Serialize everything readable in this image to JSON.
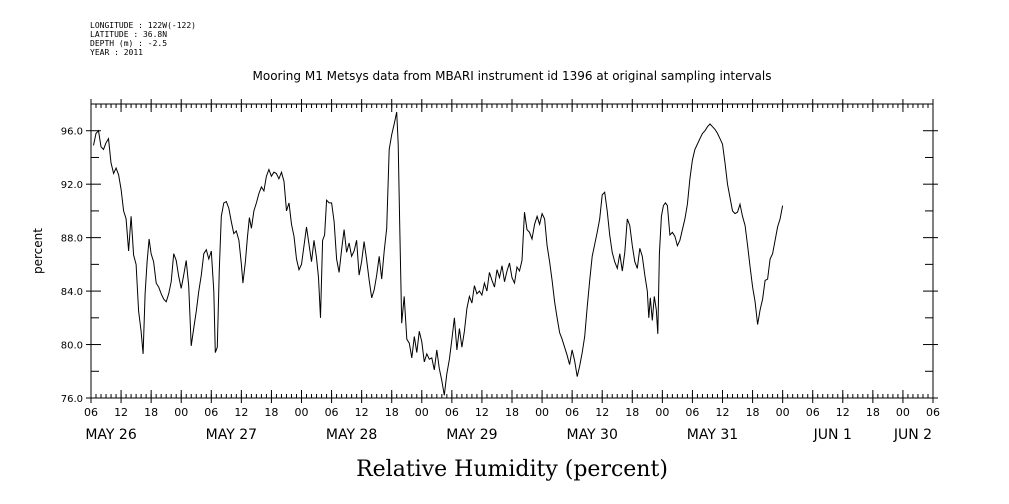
{
  "meta": {
    "longitude": "LONGITUDE : 122W(-122)",
    "latitude": "LATITUDE : 36.8N",
    "depth": "DEPTH (m) : -2.5",
    "year": "YEAR : 2011"
  },
  "chart_data": {
    "type": "line",
    "title": "Mooring M1 Metsys data from MBARI instrument id 1396 at original sampling intervals",
    "xlabel": "Relative Humidity (percent)",
    "ylabel": "percent",
    "ylim": [
      76.0,
      98.0
    ],
    "xlim_hours": [
      0,
      168
    ],
    "yticks": [
      76.0,
      80.0,
      84.0,
      88.0,
      92.0,
      96.0
    ],
    "ytick_labels": [
      "76.0",
      "80.0",
      "84.0",
      "88.0",
      "92.0",
      "96.0"
    ],
    "xtick_labels": [
      "06",
      "12",
      "18",
      "00",
      "06",
      "12",
      "18",
      "00",
      "06",
      "12",
      "18",
      "00",
      "06",
      "12",
      "18",
      "00",
      "06",
      "12",
      "18",
      "00",
      "06",
      "12",
      "18",
      "00",
      "06",
      "12",
      "18",
      "00",
      "06"
    ],
    "date_labels": [
      {
        "text": "MAY 26",
        "hour": 4
      },
      {
        "text": "MAY 27",
        "hour": 28
      },
      {
        "text": "MAY 28",
        "hour": 52
      },
      {
        "text": "MAY 29",
        "hour": 76
      },
      {
        "text": "MAY 30",
        "hour": 100
      },
      {
        "text": "MAY 31",
        "hour": 124
      },
      {
        "text": "JUN  1",
        "hour": 148
      },
      {
        "text": "JUN  2",
        "hour": 164
      }
    ],
    "grid": false,
    "series": [
      {
        "points": [
          [
            0.5,
            94.9
          ],
          [
            1.0,
            95.8
          ],
          [
            1.5,
            96.0
          ],
          [
            2.0,
            94.8
          ],
          [
            2.5,
            94.6
          ],
          [
            3.0,
            95.1
          ],
          [
            3.5,
            95.4
          ],
          [
            4.0,
            93.6
          ],
          [
            4.5,
            92.8
          ],
          [
            5.0,
            93.2
          ],
          [
            5.5,
            92.7
          ],
          [
            6.0,
            91.6
          ],
          [
            6.5,
            90.0
          ],
          [
            7.0,
            89.4
          ],
          [
            7.5,
            87.0
          ],
          [
            8.0,
            89.6
          ],
          [
            8.5,
            86.7
          ],
          [
            9.0,
            86.0
          ],
          [
            9.5,
            82.5
          ],
          [
            10.0,
            81.0
          ],
          [
            10.4,
            79.3
          ],
          [
            10.8,
            83.8
          ],
          [
            11.2,
            86.2
          ],
          [
            11.6,
            87.9
          ],
          [
            12.0,
            86.8
          ],
          [
            12.5,
            86.2
          ],
          [
            13.0,
            84.6
          ],
          [
            13.5,
            84.3
          ],
          [
            14.0,
            83.8
          ],
          [
            14.5,
            83.4
          ],
          [
            15.0,
            83.2
          ],
          [
            15.5,
            83.8
          ],
          [
            16.0,
            84.7
          ],
          [
            16.5,
            86.8
          ],
          [
            17.0,
            86.3
          ],
          [
            17.5,
            85.1
          ],
          [
            18.0,
            84.2
          ],
          [
            18.5,
            85.2
          ],
          [
            19.0,
            86.3
          ],
          [
            19.5,
            84.4
          ],
          [
            20.0,
            79.9
          ],
          [
            20.5,
            81.2
          ],
          [
            21.0,
            82.5
          ],
          [
            21.5,
            84.0
          ],
          [
            22.0,
            85.2
          ],
          [
            22.5,
            86.8
          ],
          [
            23.0,
            87.1
          ],
          [
            23.5,
            86.4
          ],
          [
            24.0,
            87.0
          ],
          [
            24.5,
            84.0
          ],
          [
            24.8,
            79.4
          ],
          [
            25.2,
            79.8
          ],
          [
            25.6,
            85.6
          ],
          [
            26.0,
            89.6
          ],
          [
            26.5,
            90.6
          ],
          [
            27.0,
            90.7
          ],
          [
            27.5,
            90.2
          ],
          [
            28.0,
            89.2
          ],
          [
            28.5,
            88.3
          ],
          [
            29.0,
            88.5
          ],
          [
            29.5,
            87.8
          ],
          [
            30.0,
            86.0
          ],
          [
            30.3,
            84.6
          ],
          [
            30.8,
            86.2
          ],
          [
            31.2,
            88.0
          ],
          [
            31.6,
            89.5
          ],
          [
            32.0,
            88.7
          ],
          [
            32.5,
            90.0
          ],
          [
            33.0,
            90.6
          ],
          [
            33.5,
            91.3
          ],
          [
            34.0,
            91.8
          ],
          [
            34.5,
            91.5
          ],
          [
            35.0,
            92.6
          ],
          [
            35.5,
            93.1
          ],
          [
            36.0,
            92.6
          ],
          [
            36.5,
            92.9
          ],
          [
            37.0,
            92.8
          ],
          [
            37.5,
            92.4
          ],
          [
            38.0,
            92.9
          ],
          [
            38.5,
            92.2
          ],
          [
            39.0,
            90.0
          ],
          [
            39.5,
            90.6
          ],
          [
            40.0,
            89.0
          ],
          [
            40.5,
            88.1
          ],
          [
            41.0,
            86.4
          ],
          [
            41.5,
            85.6
          ],
          [
            42.0,
            86.0
          ],
          [
            42.5,
            87.4
          ],
          [
            43.0,
            88.8
          ],
          [
            43.5,
            87.5
          ],
          [
            44.0,
            86.2
          ],
          [
            44.5,
            87.8
          ],
          [
            45.0,
            86.5
          ],
          [
            45.4,
            85.0
          ],
          [
            45.8,
            82.0
          ],
          [
            46.2,
            87.8
          ],
          [
            46.6,
            88.2
          ],
          [
            47.0,
            90.8
          ],
          [
            47.5,
            90.6
          ],
          [
            48.0,
            90.6
          ],
          [
            48.5,
            89.2
          ],
          [
            49.0,
            86.4
          ],
          [
            49.5,
            85.4
          ],
          [
            50.0,
            87.1
          ],
          [
            50.5,
            88.6
          ],
          [
            51.0,
            86.9
          ],
          [
            51.5,
            87.6
          ],
          [
            52.0,
            86.6
          ],
          [
            52.5,
            87.0
          ],
          [
            53.0,
            87.8
          ],
          [
            53.5,
            85.2
          ],
          [
            54.0,
            86.2
          ],
          [
            54.5,
            87.7
          ],
          [
            55.0,
            86.3
          ],
          [
            55.5,
            84.8
          ],
          [
            56.0,
            83.5
          ],
          [
            56.5,
            84.1
          ],
          [
            57.0,
            85.2
          ],
          [
            57.5,
            86.6
          ],
          [
            58.0,
            84.9
          ],
          [
            58.5,
            87.0
          ],
          [
            59.0,
            88.7
          ],
          [
            59.5,
            94.6
          ],
          [
            60.0,
            95.7
          ],
          [
            60.5,
            96.5
          ],
          [
            61.0,
            97.4
          ],
          [
            61.3,
            95.0
          ],
          [
            61.6,
            89.0
          ],
          [
            62.0,
            81.6
          ],
          [
            62.5,
            83.6
          ],
          [
            63.0,
            80.4
          ],
          [
            63.5,
            80.1
          ],
          [
            64.0,
            79.0
          ],
          [
            64.5,
            80.6
          ],
          [
            65.0,
            79.4
          ],
          [
            65.5,
            81.0
          ],
          [
            66.0,
            80.2
          ],
          [
            66.5,
            78.7
          ],
          [
            67.0,
            79.3
          ],
          [
            67.5,
            78.9
          ],
          [
            68.0,
            79.0
          ],
          [
            68.5,
            78.1
          ],
          [
            69.0,
            79.6
          ],
          [
            69.5,
            78.2
          ],
          [
            70.0,
            77.3
          ],
          [
            70.5,
            76.2
          ],
          [
            71.0,
            77.8
          ],
          [
            71.5,
            78.9
          ],
          [
            72.0,
            80.4
          ],
          [
            72.5,
            82.0
          ],
          [
            73.0,
            79.6
          ],
          [
            73.5,
            81.2
          ],
          [
            74.0,
            79.8
          ],
          [
            74.5,
            81.0
          ],
          [
            75.0,
            82.7
          ],
          [
            75.5,
            83.6
          ],
          [
            76.0,
            83.1
          ],
          [
            76.5,
            84.4
          ],
          [
            77.0,
            83.8
          ],
          [
            77.5,
            84.0
          ],
          [
            78.0,
            83.7
          ],
          [
            78.5,
            84.6
          ],
          [
            79.0,
            84.0
          ],
          [
            79.5,
            85.4
          ],
          [
            80.0,
            84.8
          ],
          [
            80.5,
            84.3
          ],
          [
            81.0,
            85.6
          ],
          [
            81.5,
            85.0
          ],
          [
            82.0,
            85.9
          ],
          [
            82.5,
            84.7
          ],
          [
            83.0,
            85.5
          ],
          [
            83.5,
            86.1
          ],
          [
            84.0,
            85.0
          ],
          [
            84.5,
            84.6
          ],
          [
            85.0,
            85.8
          ],
          [
            85.5,
            85.5
          ],
          [
            86.0,
            86.3
          ],
          [
            86.5,
            89.9
          ],
          [
            87.0,
            88.6
          ],
          [
            87.5,
            88.4
          ],
          [
            88.0,
            87.9
          ],
          [
            88.5,
            89.0
          ],
          [
            89.0,
            89.6
          ],
          [
            89.5,
            89.0
          ],
          [
            90.0,
            89.8
          ],
          [
            90.5,
            89.4
          ],
          [
            91.0,
            87.4
          ],
          [
            91.5,
            86.2
          ],
          [
            92.0,
            84.8
          ],
          [
            92.5,
            83.2
          ],
          [
            93.0,
            82.0
          ],
          [
            93.5,
            80.9
          ],
          [
            94.0,
            80.4
          ],
          [
            94.5,
            79.8
          ],
          [
            95.0,
            79.2
          ],
          [
            95.5,
            78.5
          ],
          [
            96.0,
            79.6
          ],
          [
            96.5,
            78.8
          ],
          [
            97.0,
            77.6
          ],
          [
            97.5,
            78.4
          ],
          [
            98.0,
            79.4
          ],
          [
            98.5,
            80.6
          ],
          [
            99.0,
            82.8
          ],
          [
            99.5,
            84.8
          ],
          [
            100.0,
            86.6
          ],
          [
            100.5,
            87.5
          ],
          [
            101.0,
            88.4
          ],
          [
            101.5,
            89.4
          ],
          [
            102.0,
            91.2
          ],
          [
            102.5,
            91.4
          ],
          [
            103.0,
            90.0
          ],
          [
            103.5,
            88.2
          ],
          [
            104.0,
            86.9
          ],
          [
            104.5,
            86.2
          ],
          [
            105.0,
            85.7
          ],
          [
            105.5,
            86.8
          ],
          [
            106.0,
            85.5
          ],
          [
            106.5,
            86.9
          ],
          [
            107.0,
            89.4
          ],
          [
            107.5,
            88.9
          ],
          [
            108.0,
            87.4
          ],
          [
            108.5,
            86.2
          ],
          [
            109.0,
            85.7
          ],
          [
            109.5,
            87.2
          ],
          [
            110.0,
            86.6
          ],
          [
            110.5,
            85.2
          ],
          [
            111.0,
            84.0
          ],
          [
            111.3,
            82.0
          ],
          [
            111.6,
            83.5
          ],
          [
            112.0,
            81.8
          ],
          [
            112.4,
            83.6
          ],
          [
            112.8,
            82.6
          ],
          [
            113.1,
            80.8
          ],
          [
            113.4,
            86.8
          ],
          [
            113.8,
            89.6
          ],
          [
            114.2,
            90.4
          ],
          [
            114.6,
            90.6
          ],
          [
            115.0,
            90.4
          ],
          [
            115.5,
            88.2
          ],
          [
            116.0,
            88.4
          ],
          [
            116.5,
            88.1
          ],
          [
            117.0,
            87.4
          ],
          [
            117.5,
            87.8
          ],
          [
            118.0,
            88.6
          ],
          [
            118.5,
            89.4
          ],
          [
            119.0,
            90.5
          ],
          [
            119.5,
            92.4
          ],
          [
            120.0,
            93.8
          ],
          [
            120.5,
            94.6
          ],
          [
            121.0,
            95.0
          ],
          [
            121.5,
            95.4
          ],
          [
            122.0,
            95.8
          ],
          [
            122.5,
            96.0
          ],
          [
            123.0,
            96.3
          ],
          [
            123.5,
            96.5
          ],
          [
            124.0,
            96.3
          ],
          [
            124.5,
            96.1
          ],
          [
            125.0,
            95.8
          ],
          [
            125.5,
            95.4
          ],
          [
            126.0,
            95.0
          ],
          [
            126.5,
            93.6
          ],
          [
            127.0,
            92.0
          ],
          [
            127.5,
            91.0
          ],
          [
            128.0,
            90.0
          ],
          [
            128.5,
            89.8
          ],
          [
            129.0,
            89.9
          ],
          [
            129.5,
            90.5
          ],
          [
            130.0,
            89.6
          ],
          [
            130.5,
            88.9
          ],
          [
            131.0,
            87.4
          ],
          [
            131.5,
            85.8
          ],
          [
            132.0,
            84.3
          ],
          [
            132.5,
            83.2
          ],
          [
            133.0,
            81.5
          ],
          [
            133.5,
            82.6
          ],
          [
            134.0,
            83.4
          ],
          [
            134.5,
            84.8
          ],
          [
            135.0,
            84.9
          ],
          [
            135.5,
            86.4
          ],
          [
            136.0,
            86.8
          ],
          [
            136.5,
            87.8
          ],
          [
            137.0,
            88.8
          ],
          [
            137.5,
            89.4
          ],
          [
            138.0,
            90.4
          ]
        ]
      }
    ]
  }
}
